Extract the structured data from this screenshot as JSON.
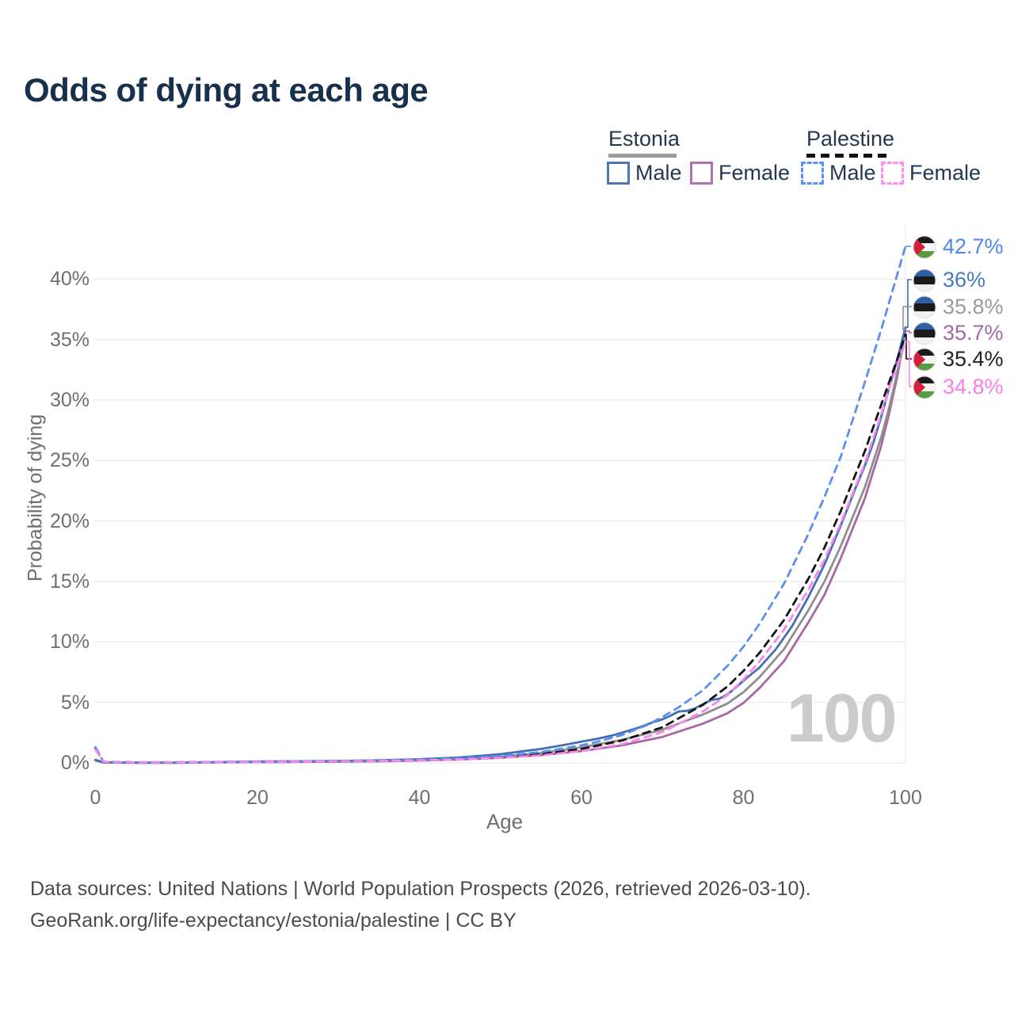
{
  "title": "Odds of dying at each age",
  "legend": {
    "groups": [
      {
        "name": "Estonia",
        "style": "solid",
        "items": [
          {
            "label": "Male",
            "color": "#4c79b6"
          },
          {
            "label": "Female",
            "color": "#b172ae"
          }
        ]
      },
      {
        "name": "Palestine",
        "style": "dashed",
        "items": [
          {
            "label": "Male",
            "color": "#5b8ff2"
          },
          {
            "label": "Female",
            "color": "#fc8df5"
          }
        ]
      }
    ]
  },
  "chart_data": {
    "type": "line",
    "title": "Odds of dying at each age",
    "xlabel": "Age",
    "ylabel": "Probability of dying",
    "xlim": [
      0,
      100
    ],
    "ylim": [
      0,
      43
    ],
    "x_ticks": [
      0,
      20,
      40,
      60,
      80,
      100
    ],
    "x_tick_labels": [
      "0",
      "20",
      "40",
      "60",
      "80",
      "100"
    ],
    "y_ticks": [
      0,
      5,
      10,
      15,
      20,
      25,
      30,
      35,
      40
    ],
    "y_tick_labels": [
      "0%",
      "5%",
      "10%",
      "15%",
      "20%",
      "25%",
      "30%",
      "35%",
      "40%"
    ],
    "grid": "horizontal",
    "legend_position": "top-right",
    "watermark": "100",
    "series": [
      {
        "name": "Estonia Female",
        "country": "Estonia",
        "sex": "female",
        "style": "solid",
        "color": "#a668a4",
        "end_value": 35.7,
        "end_label": "35.7%",
        "points": [
          [
            0,
            0.2
          ],
          [
            1,
            0.03
          ],
          [
            5,
            0.015
          ],
          [
            10,
            0.015
          ],
          [
            15,
            0.04
          ],
          [
            20,
            0.06
          ],
          [
            25,
            0.08
          ],
          [
            30,
            0.1
          ],
          [
            35,
            0.13
          ],
          [
            40,
            0.19
          ],
          [
            45,
            0.28
          ],
          [
            50,
            0.42
          ],
          [
            55,
            0.64
          ],
          [
            60,
            0.98
          ],
          [
            65,
            1.45
          ],
          [
            70,
            2.15
          ],
          [
            75,
            3.25
          ],
          [
            78,
            4.1
          ],
          [
            80,
            4.95
          ],
          [
            82,
            6.2
          ],
          [
            85,
            8.4
          ],
          [
            88,
            11.6
          ],
          [
            90,
            13.9
          ],
          [
            92,
            16.9
          ],
          [
            95,
            21.9
          ],
          [
            97,
            26.2
          ],
          [
            98,
            28.9
          ],
          [
            99,
            32.0
          ],
          [
            100,
            35.7
          ]
        ]
      },
      {
        "name": "Estonia Both sexes",
        "country": "Estonia",
        "sex": "both",
        "style": "solid",
        "color": "#8f8f8f",
        "end_value": 35.8,
        "end_label": "35.8%",
        "points": [
          [
            0,
            0.22
          ],
          [
            1,
            0.03
          ],
          [
            5,
            0.02
          ],
          [
            10,
            0.02
          ],
          [
            15,
            0.05
          ],
          [
            20,
            0.08
          ],
          [
            25,
            0.1
          ],
          [
            30,
            0.12
          ],
          [
            35,
            0.16
          ],
          [
            40,
            0.23
          ],
          [
            45,
            0.34
          ],
          [
            50,
            0.52
          ],
          [
            55,
            0.82
          ],
          [
            60,
            1.28
          ],
          [
            65,
            1.9
          ],
          [
            70,
            2.75
          ],
          [
            75,
            4.0
          ],
          [
            78,
            4.9
          ],
          [
            80,
            5.85
          ],
          [
            82,
            7.1
          ],
          [
            85,
            9.4
          ],
          [
            88,
            12.6
          ],
          [
            90,
            15.0
          ],
          [
            92,
            17.9
          ],
          [
            95,
            22.8
          ],
          [
            97,
            26.9
          ],
          [
            98,
            29.4
          ],
          [
            99,
            32.3
          ],
          [
            100,
            35.8
          ]
        ]
      },
      {
        "name": "Estonia Male",
        "country": "Estonia",
        "sex": "male",
        "style": "solid",
        "color": "#426fb5",
        "end_value": 36.0,
        "end_label": "36%",
        "points": [
          [
            0,
            0.25
          ],
          [
            1,
            0.04
          ],
          [
            5,
            0.02
          ],
          [
            10,
            0.02
          ],
          [
            15,
            0.06
          ],
          [
            20,
            0.11
          ],
          [
            25,
            0.13
          ],
          [
            30,
            0.16
          ],
          [
            35,
            0.21
          ],
          [
            40,
            0.3
          ],
          [
            45,
            0.45
          ],
          [
            50,
            0.72
          ],
          [
            55,
            1.15
          ],
          [
            58,
            1.5
          ],
          [
            60,
            1.75
          ],
          [
            62,
            2.0
          ],
          [
            64,
            2.3
          ],
          [
            65,
            2.5
          ],
          [
            67,
            2.9
          ],
          [
            69,
            3.4
          ],
          [
            70,
            3.6
          ],
          [
            71,
            3.9
          ],
          [
            72,
            4.25
          ],
          [
            73,
            4.3
          ],
          [
            74,
            4.5
          ],
          [
            75,
            4.85
          ],
          [
            76,
            5.2
          ],
          [
            77,
            5.3
          ],
          [
            78,
            5.65
          ],
          [
            79,
            6.2
          ],
          [
            80,
            6.8
          ],
          [
            82,
            7.9
          ],
          [
            84,
            9.4
          ],
          [
            86,
            11.3
          ],
          [
            88,
            13.7
          ],
          [
            90,
            16.4
          ],
          [
            92,
            19.6
          ],
          [
            94,
            23.0
          ],
          [
            95,
            24.6
          ],
          [
            96,
            26.4
          ],
          [
            97,
            28.6
          ],
          [
            98,
            31.0
          ],
          [
            99,
            33.4
          ],
          [
            100,
            36.0
          ]
        ]
      },
      {
        "name": "Palestine Both sexes",
        "country": "Palestine",
        "sex": "both",
        "style": "dashed",
        "color": "#141414",
        "end_value": 35.4,
        "end_label": "35.4%",
        "points": [
          [
            0,
            1.2
          ],
          [
            1,
            0.08
          ],
          [
            5,
            0.04
          ],
          [
            10,
            0.04
          ],
          [
            15,
            0.07
          ],
          [
            20,
            0.1
          ],
          [
            25,
            0.12
          ],
          [
            30,
            0.15
          ],
          [
            35,
            0.18
          ],
          [
            40,
            0.24
          ],
          [
            45,
            0.32
          ],
          [
            50,
            0.47
          ],
          [
            55,
            0.72
          ],
          [
            60,
            1.15
          ],
          [
            65,
            1.85
          ],
          [
            70,
            2.95
          ],
          [
            75,
            4.8
          ],
          [
            78,
            6.3
          ],
          [
            80,
            7.6
          ],
          [
            82,
            9.1
          ],
          [
            85,
            11.8
          ],
          [
            88,
            15.2
          ],
          [
            90,
            17.8
          ],
          [
            92,
            20.8
          ],
          [
            95,
            25.8
          ],
          [
            97,
            29.6
          ],
          [
            98,
            31.5
          ],
          [
            99,
            33.4
          ],
          [
            100,
            35.4
          ]
        ]
      },
      {
        "name": "Palestine Male",
        "country": "Palestine",
        "sex": "male",
        "style": "dashed",
        "color": "#5b8ff2",
        "end_value": 42.7,
        "end_label": "42.7%",
        "points": [
          [
            0,
            1.3
          ],
          [
            1,
            0.09
          ],
          [
            5,
            0.05
          ],
          [
            10,
            0.05
          ],
          [
            15,
            0.08
          ],
          [
            20,
            0.12
          ],
          [
            25,
            0.14
          ],
          [
            30,
            0.17
          ],
          [
            35,
            0.21
          ],
          [
            40,
            0.27
          ],
          [
            45,
            0.37
          ],
          [
            50,
            0.57
          ],
          [
            55,
            0.9
          ],
          [
            60,
            1.45
          ],
          [
            62,
            1.75
          ],
          [
            65,
            2.3
          ],
          [
            68,
            3.1
          ],
          [
            70,
            3.8
          ],
          [
            72,
            4.6
          ],
          [
            75,
            6.0
          ],
          [
            78,
            8.0
          ],
          [
            80,
            9.6
          ],
          [
            82,
            11.5
          ],
          [
            85,
            14.8
          ],
          [
            88,
            18.9
          ],
          [
            90,
            22.0
          ],
          [
            92,
            25.3
          ],
          [
            95,
            31.5
          ],
          [
            97,
            35.8
          ],
          [
            100,
            42.7
          ]
        ]
      },
      {
        "name": "Palestine Female",
        "country": "Palestine",
        "sex": "female",
        "style": "dashed",
        "color": "#fb86ee",
        "end_value": 34.8,
        "end_label": "34.8%",
        "points": [
          [
            0,
            1.1
          ],
          [
            1,
            0.07
          ],
          [
            5,
            0.03
          ],
          [
            10,
            0.03
          ],
          [
            15,
            0.05
          ],
          [
            20,
            0.08
          ],
          [
            25,
            0.1
          ],
          [
            30,
            0.13
          ],
          [
            35,
            0.16
          ],
          [
            40,
            0.21
          ],
          [
            45,
            0.28
          ],
          [
            50,
            0.42
          ],
          [
            55,
            0.62
          ],
          [
            60,
            0.98
          ],
          [
            65,
            1.55
          ],
          [
            70,
            2.55
          ],
          [
            75,
            4.25
          ],
          [
            78,
            5.6
          ],
          [
            80,
            6.9
          ],
          [
            82,
            8.4
          ],
          [
            85,
            11.0
          ],
          [
            88,
            14.3
          ],
          [
            90,
            16.8
          ],
          [
            92,
            19.8
          ],
          [
            95,
            24.8
          ],
          [
            97,
            28.8
          ],
          [
            98,
            31.0
          ],
          [
            99,
            32.8
          ],
          [
            100,
            34.8
          ]
        ]
      }
    ]
  },
  "end_labels": [
    {
      "value": "42.7%",
      "flag": "palestine",
      "color": "#4e86ea",
      "series": "Palestine Male"
    },
    {
      "value": "36%",
      "flag": "estonia",
      "color": "#4878c8",
      "series": "Estonia Male"
    },
    {
      "value": "35.8%",
      "flag": "estonia",
      "color": "#9b9b9b",
      "series": "Estonia Both sexes"
    },
    {
      "value": "35.7%",
      "flag": "estonia",
      "color": "#a768a7",
      "series": "Estonia Female"
    },
    {
      "value": "35.4%",
      "flag": "palestine",
      "color": "#222222",
      "series": "Palestine Both sexes"
    },
    {
      "value": "34.8%",
      "flag": "palestine",
      "color": "#fb7ce8",
      "series": "Palestine Female"
    }
  ],
  "colors": {
    "title": "#17304d",
    "axis_text": "#6f6f6f",
    "gridline": "#ededed",
    "watermark": "#cbcbcb",
    "footer_text": "#4b4b4b",
    "estonia_underline": "#9c9c9c",
    "palestine_underline": "#111111",
    "flags": {
      "estonia": {
        "blue": "#2e5fa6",
        "black": "#1b1b1b",
        "white": "#f0f0f0"
      },
      "palestine": {
        "black": "#1b1b1b",
        "white": "#f4f4f4",
        "green": "#579a40",
        "red": "#d21f3c"
      }
    }
  },
  "footer": {
    "line1": "Data sources: United Nations | World Population Prospects (2026, retrieved 2026-03-10).",
    "line2": "GeoRank.org/life-expectancy/estonia/palestine | CC BY"
  }
}
